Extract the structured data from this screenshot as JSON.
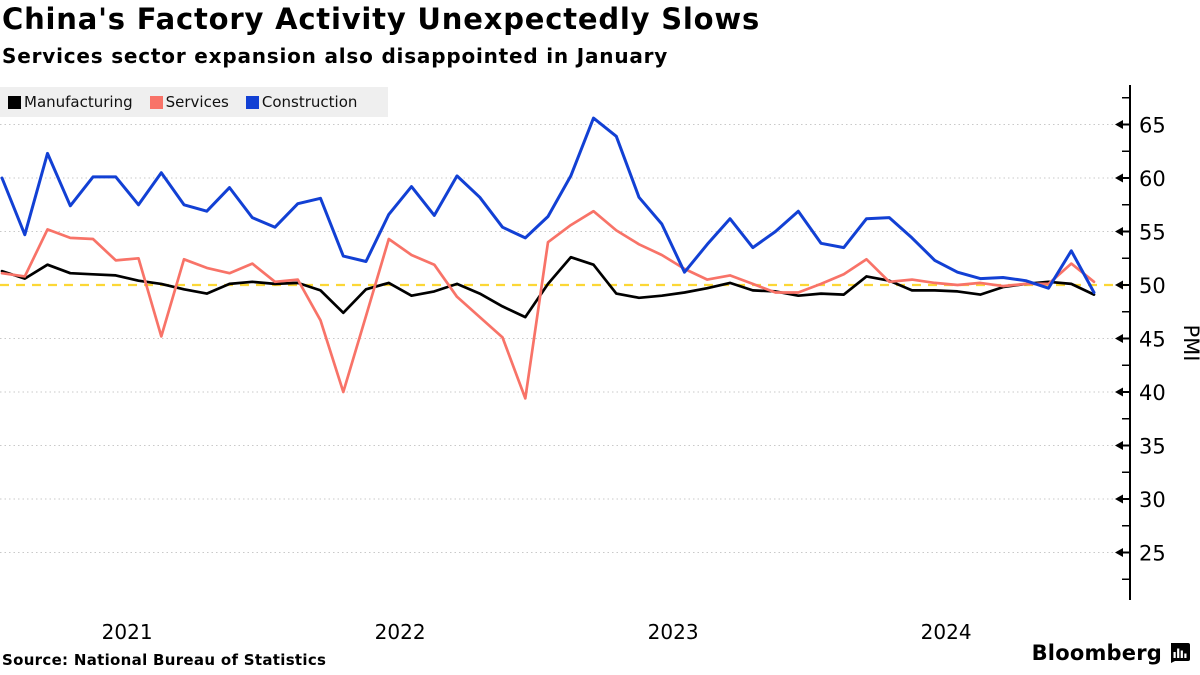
{
  "header": {
    "title": "China's Factory Activity Unexpectedly Slows",
    "subtitle": "Services sector expansion also disappointed in January"
  },
  "legend": {
    "items": [
      {
        "label": "Manufacturing",
        "color": "#000000"
      },
      {
        "label": "Services",
        "color": "#f87368"
      },
      {
        "label": "Construction",
        "color": "#1240d4"
      }
    ]
  },
  "footer": {
    "source": "Source: National Bureau of Statistics",
    "brand": "Bloomberg",
    "brand_icon": "bloomberg-terminal-icon"
  },
  "colors": {
    "grid": "#c9c9c9",
    "axis": "#000000",
    "reference": "#fcd736",
    "legend_bg": "#efefef"
  },
  "chart_data": {
    "type": "line",
    "title": "China's Factory Activity Unexpectedly Slows",
    "subtitle": "Services sector expansion also disappointed in January",
    "x_unit": "month",
    "x_start": "2021-01",
    "x_end": "2025-01",
    "x_tick_labels": [
      "2021",
      "2022",
      "2023",
      "2024"
    ],
    "ylabel": "PMI",
    "ylim": [
      20,
      68
    ],
    "y_ticks": [
      25,
      30,
      35,
      40,
      45,
      50,
      55,
      60,
      65
    ],
    "y_minor_step": 2.5,
    "grid": "horizontal-dotted",
    "legend_position": "top-left",
    "reference_line": {
      "value": 50,
      "style": "dashed",
      "color": "#fcd736"
    },
    "series": [
      {
        "name": "Manufacturing",
        "color": "#000000",
        "values": [
          51.3,
          50.6,
          51.9,
          51.1,
          51.0,
          50.9,
          50.4,
          50.1,
          49.6,
          49.2,
          50.1,
          50.3,
          50.1,
          50.2,
          49.5,
          47.4,
          49.6,
          50.2,
          49.0,
          49.4,
          50.1,
          49.2,
          48.0,
          47.0,
          50.1,
          52.6,
          51.9,
          49.2,
          48.8,
          49.0,
          49.3,
          49.7,
          50.2,
          49.5,
          49.4,
          49.0,
          49.2,
          49.1,
          50.8,
          50.4,
          49.5,
          49.5,
          49.4,
          49.1,
          49.8,
          50.1,
          50.3,
          50.1,
          49.1
        ]
      },
      {
        "name": "Services",
        "color": "#f87368",
        "values": [
          51.1,
          50.8,
          55.2,
          54.4,
          54.3,
          52.3,
          52.5,
          45.2,
          52.4,
          51.6,
          51.1,
          52.0,
          50.3,
          50.5,
          46.7,
          40.0,
          47.1,
          54.3,
          52.8,
          51.9,
          48.9,
          47.0,
          45.1,
          39.4,
          54.0,
          55.6,
          56.9,
          55.1,
          53.8,
          52.8,
          51.5,
          50.5,
          50.9,
          50.1,
          49.3,
          49.3,
          50.1,
          51.0,
          52.4,
          50.3,
          50.5,
          50.2,
          50.0,
          50.2,
          49.9,
          50.1,
          50.1,
          52.0,
          50.3
        ]
      },
      {
        "name": "Construction",
        "color": "#1240d4",
        "values": [
          60.0,
          54.7,
          62.3,
          57.4,
          60.1,
          60.1,
          57.5,
          60.5,
          57.5,
          56.9,
          59.1,
          56.3,
          55.4,
          57.6,
          58.1,
          52.7,
          52.2,
          56.6,
          59.2,
          56.5,
          60.2,
          58.2,
          55.4,
          54.4,
          56.4,
          60.2,
          65.6,
          63.9,
          58.2,
          55.7,
          51.2,
          53.8,
          56.2,
          53.5,
          55.0,
          56.9,
          53.9,
          53.5,
          56.2,
          56.3,
          54.4,
          52.3,
          51.2,
          50.6,
          50.7,
          50.4,
          49.7,
          53.2,
          49.3
        ]
      }
    ]
  }
}
